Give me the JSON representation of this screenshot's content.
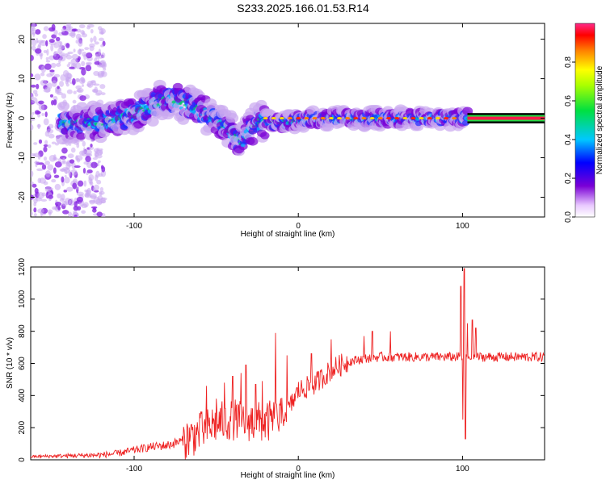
{
  "title": "S233.2025.166.01.53.R14",
  "chart_data": [
    {
      "type": "heatmap",
      "xlabel": "Height of straight line (km)",
      "ylabel": "Frequency (Hz)",
      "xlim": [
        -163,
        150
      ],
      "ylim": [
        -25,
        24
      ],
      "xticks": [
        -100,
        0,
        100
      ],
      "yticks": [
        -20,
        -10,
        0,
        10,
        20
      ],
      "colorbar": {
        "label": "Normalized spectral amplitude",
        "range": [
          0,
          1
        ],
        "ticks": [
          "0.0",
          "0.2",
          "0.4",
          "0.6",
          "0.8"
        ]
      },
      "ridge": {
        "x": [
          -145,
          -130,
          -115,
          -100,
          -90,
          -80,
          -70,
          -60,
          -50,
          -40,
          -35,
          -30,
          -25,
          -20,
          -10,
          0,
          20,
          40,
          60,
          80,
          100,
          150
        ],
        "frequency": [
          -1,
          -1,
          -1,
          1,
          3,
          5,
          4,
          2,
          0,
          -4,
          -6,
          -3,
          -1,
          -1,
          -1,
          -0.5,
          0,
          0,
          0,
          0,
          0,
          0
        ]
      }
    },
    {
      "type": "line",
      "xlabel": "Height of straight line (km)",
      "ylabel": "SNR (10 * v/v)",
      "xlim": [
        -163,
        150
      ],
      "ylim": [
        0,
        1200
      ],
      "xticks": [
        -100,
        0,
        100
      ],
      "yticks": [
        0,
        200,
        400,
        600,
        800,
        1000,
        1200
      ],
      "color": "#ee2222",
      "envelope": {
        "x": [
          -163,
          -140,
          -120,
          -110,
          -100,
          -90,
          -80,
          -70,
          -60,
          -50,
          -40,
          -30,
          -20,
          -15,
          -10,
          -5,
          0,
          10,
          20,
          30,
          40,
          50,
          60,
          70,
          80,
          90,
          95,
          100,
          105,
          110,
          120,
          130,
          140,
          150
        ],
        "y": [
          20,
          25,
          30,
          40,
          60,
          80,
          90,
          120,
          170,
          230,
          250,
          240,
          230,
          250,
          260,
          330,
          430,
          470,
          560,
          610,
          630,
          640,
          640,
          640,
          640,
          640,
          640,
          640,
          640,
          640,
          640,
          640,
          640,
          640
        ]
      },
      "spikes": [
        {
          "x": -59,
          "y": 290
        },
        {
          "x": -56,
          "y": 460
        },
        {
          "x": -50,
          "y": 380
        },
        {
          "x": -45,
          "y": 480
        },
        {
          "x": -40,
          "y": 520
        },
        {
          "x": -35,
          "y": 540
        },
        {
          "x": -32,
          "y": 590
        },
        {
          "x": -26,
          "y": 470
        },
        {
          "x": -22,
          "y": 490
        },
        {
          "x": -14,
          "y": 790
        },
        {
          "x": -7,
          "y": 650
        },
        {
          "x": 8,
          "y": 660
        },
        {
          "x": 20,
          "y": 750
        },
        {
          "x": 40,
          "y": 770
        },
        {
          "x": 45,
          "y": 800
        },
        {
          "x": 56,
          "y": 800
        },
        {
          "x": 99,
          "y": 1080
        },
        {
          "x": 101,
          "y": 1190
        },
        {
          "x": 101.8,
          "y": 130
        },
        {
          "x": 100.2,
          "y": 250
        },
        {
          "x": 103,
          "y": 850
        },
        {
          "x": 106,
          "y": 870
        },
        {
          "x": 108,
          "y": 820
        }
      ]
    }
  ]
}
